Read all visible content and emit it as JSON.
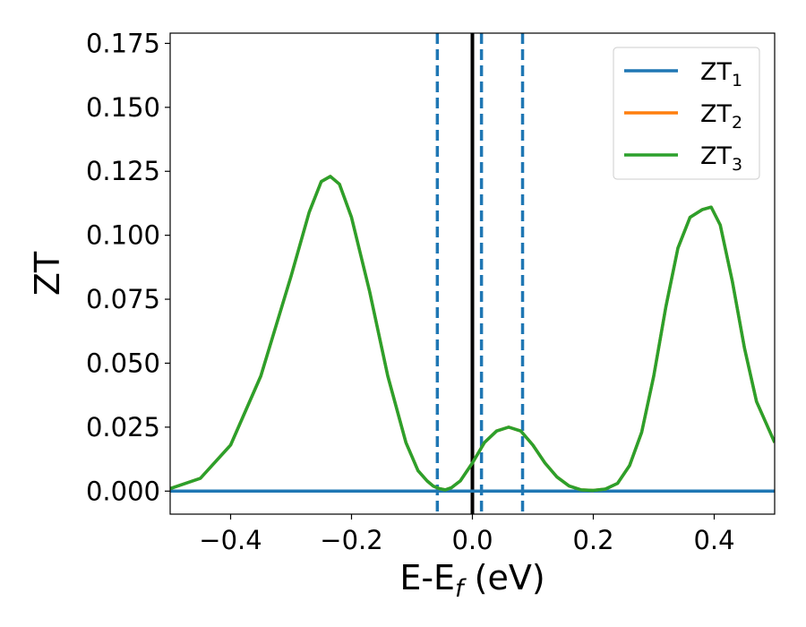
{
  "chart_data": {
    "type": "line",
    "xlabel": "E-E",
    "xlabel_sub": "f",
    "xlabel_unit": " (eV)",
    "ylabel": "ZT",
    "xlim": [
      -0.5,
      0.5
    ],
    "ylim": [
      -0.009,
      0.179
    ],
    "xticks": [
      -0.4,
      -0.2,
      0.0,
      0.2,
      0.4
    ],
    "xtick_labels": [
      "−0.4",
      "−0.2",
      "0.0",
      "0.2",
      "0.4"
    ],
    "yticks": [
      0.0,
      0.025,
      0.05,
      0.075,
      0.1,
      0.125,
      0.15,
      0.175
    ],
    "ytick_labels": [
      "0.000",
      "0.025",
      "0.050",
      "0.075",
      "0.100",
      "0.125",
      "0.150",
      "0.175"
    ],
    "grid": false,
    "legend_position": "top-right",
    "series": [
      {
        "name": "ZT",
        "sub": "1",
        "color": "#1f77b4",
        "x": [
          -0.5,
          0.5
        ],
        "y": [
          0.0,
          0.0
        ]
      },
      {
        "name": "ZT",
        "sub": "2",
        "color": "#ff7f0e",
        "x": [
          -0.5,
          -0.45,
          -0.4,
          -0.35,
          -0.3,
          -0.27,
          -0.25,
          -0.235,
          -0.22,
          -0.2,
          -0.17,
          -0.14,
          -0.11,
          -0.09,
          -0.075,
          -0.065,
          -0.055,
          -0.045,
          -0.035,
          -0.02,
          0.0,
          0.02,
          0.04,
          0.06,
          0.08,
          0.1,
          0.12,
          0.14,
          0.16,
          0.18,
          0.2,
          0.22,
          0.24,
          0.26,
          0.28,
          0.3,
          0.32,
          0.34,
          0.36,
          0.38,
          0.395,
          0.41,
          0.43,
          0.45,
          0.47,
          0.5
        ],
        "y": [
          0.001,
          0.005,
          0.018,
          0.045,
          0.084,
          0.109,
          0.121,
          0.123,
          0.12,
          0.107,
          0.078,
          0.045,
          0.019,
          0.008,
          0.004,
          0.002,
          0.001,
          0.0005,
          0.0013,
          0.004,
          0.011,
          0.019,
          0.0235,
          0.025,
          0.0235,
          0.018,
          0.011,
          0.0055,
          0.002,
          0.0005,
          0.0003,
          0.0008,
          0.003,
          0.01,
          0.023,
          0.045,
          0.072,
          0.095,
          0.107,
          0.11,
          0.111,
          0.104,
          0.082,
          0.056,
          0.035,
          0.019
        ]
      },
      {
        "name": "ZT",
        "sub": "3",
        "color": "#2ca02c",
        "x": [
          -0.5,
          -0.45,
          -0.4,
          -0.35,
          -0.3,
          -0.27,
          -0.25,
          -0.235,
          -0.22,
          -0.2,
          -0.17,
          -0.14,
          -0.11,
          -0.09,
          -0.075,
          -0.065,
          -0.055,
          -0.045,
          -0.035,
          -0.02,
          0.0,
          0.02,
          0.04,
          0.06,
          0.08,
          0.1,
          0.12,
          0.14,
          0.16,
          0.18,
          0.2,
          0.22,
          0.24,
          0.26,
          0.28,
          0.3,
          0.32,
          0.34,
          0.36,
          0.38,
          0.395,
          0.41,
          0.43,
          0.45,
          0.47,
          0.5
        ],
        "y": [
          0.001,
          0.005,
          0.018,
          0.045,
          0.084,
          0.109,
          0.121,
          0.123,
          0.12,
          0.107,
          0.078,
          0.045,
          0.019,
          0.008,
          0.004,
          0.002,
          0.001,
          0.0005,
          0.0013,
          0.004,
          0.011,
          0.019,
          0.0235,
          0.025,
          0.0235,
          0.018,
          0.011,
          0.0055,
          0.002,
          0.0005,
          0.0003,
          0.0008,
          0.003,
          0.01,
          0.023,
          0.045,
          0.072,
          0.095,
          0.107,
          0.11,
          0.111,
          0.104,
          0.082,
          0.056,
          0.035,
          0.019
        ]
      }
    ],
    "vlines": [
      {
        "x": -0.058,
        "style": "dashed",
        "color": "#1f77b4"
      },
      {
        "x": 0.015,
        "style": "dashed",
        "color": "#1f77b4"
      },
      {
        "x": 0.083,
        "style": "dashed",
        "color": "#1f77b4"
      },
      {
        "x": 0.0,
        "style": "solid",
        "color": "#000000"
      }
    ]
  }
}
